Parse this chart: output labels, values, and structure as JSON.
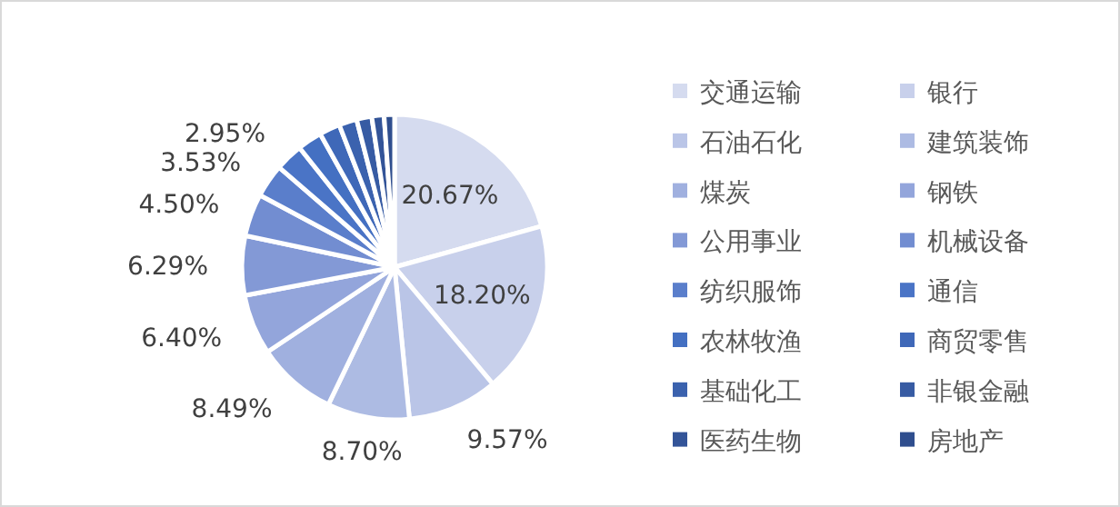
{
  "chart_data": {
    "type": "pie",
    "categories": [
      "交通运输",
      "银行",
      "石油石化",
      "建筑装饰",
      "煤炭",
      "钢铁",
      "公用事业",
      "机械设备",
      "纺织服饰",
      "通信",
      "农林牧渔",
      "商贸零售",
      "基础化工",
      "非银金融",
      "医药生物",
      "房地产"
    ],
    "values": [
      20.67,
      18.2,
      9.57,
      8.7,
      8.49,
      6.4,
      6.29,
      4.5,
      3.53,
      2.95,
      2.6,
      2.2,
      1.9,
      1.6,
      1.3,
      1.1
    ],
    "value_labels": [
      "20.67%",
      "18.20%",
      "9.57%",
      "8.70%",
      "8.49%",
      "6.40%",
      "6.29%",
      "4.50%",
      "3.53%",
      "2.95%",
      null,
      null,
      null,
      null,
      null,
      null
    ],
    "colors": [
      "#d5dbef",
      "#c8d0eb",
      "#bac5e7",
      "#adbbe3",
      "#a0b0df",
      "#93a5db",
      "#8399d6",
      "#728dd1",
      "#5a7ecb",
      "#4a74c6",
      "#4470c2",
      "#3f68b8",
      "#3b62ae",
      "#375ba3",
      "#335498",
      "#2f4e8e"
    ],
    "legend": "right"
  }
}
